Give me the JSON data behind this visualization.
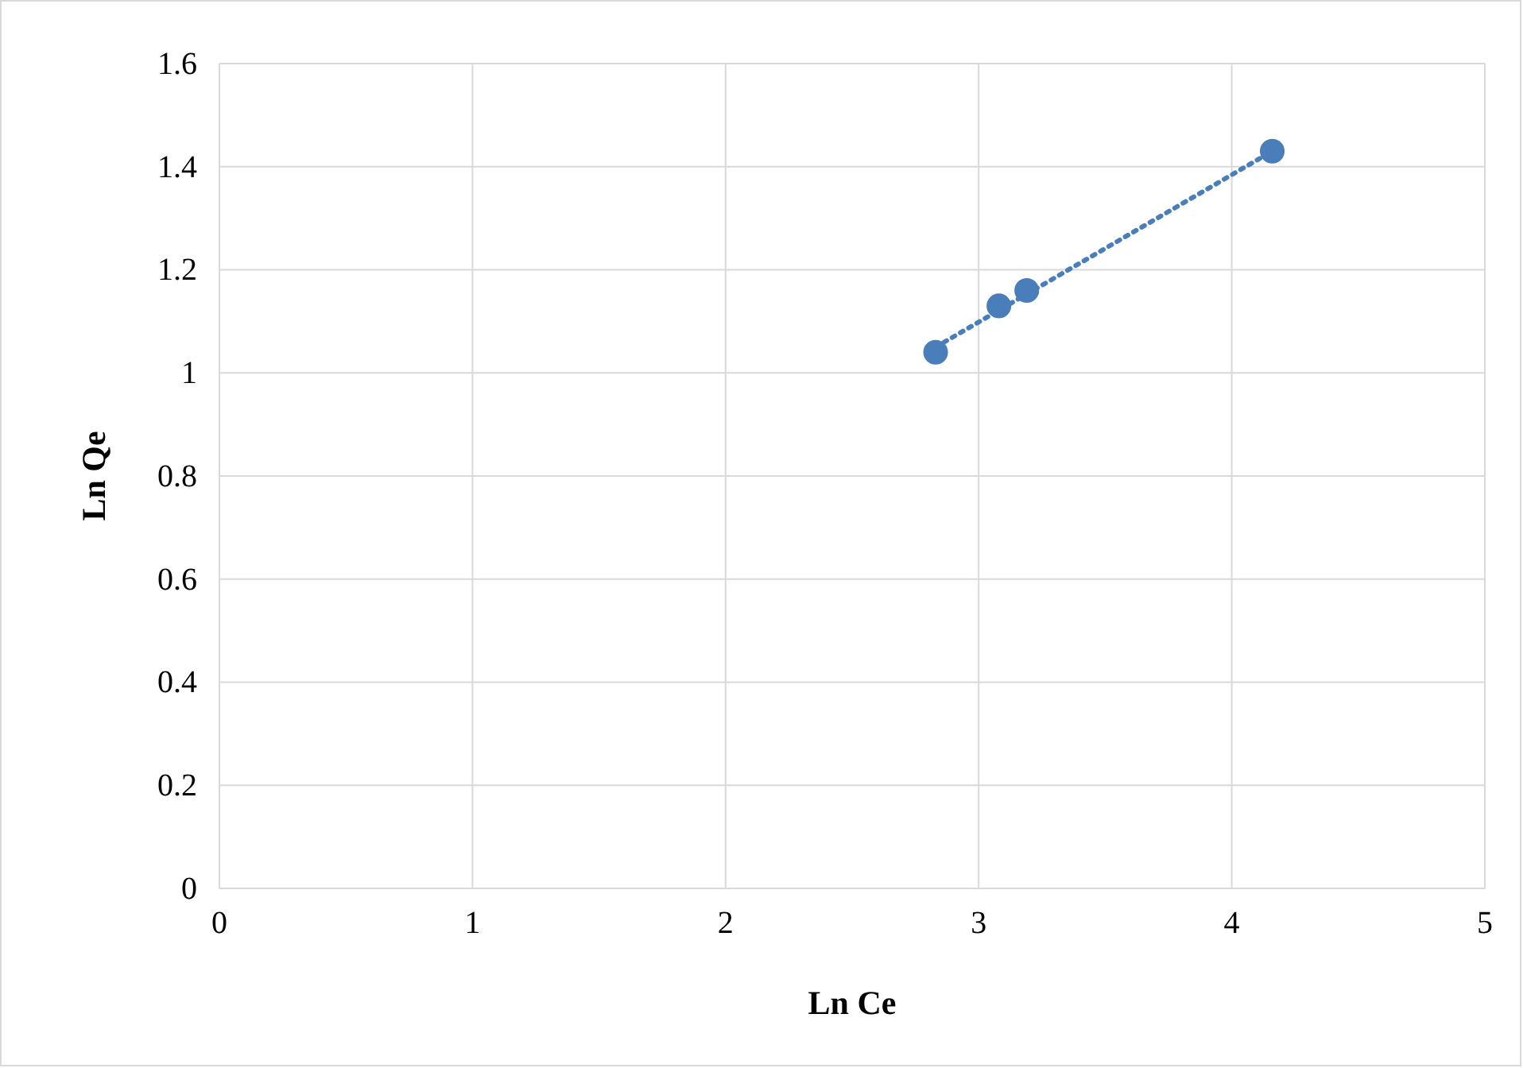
{
  "chart_data": {
    "type": "scatter",
    "xlabel": "Ln Ce",
    "ylabel": "Ln Qe",
    "xlim": [
      0,
      5
    ],
    "xticks": [
      0,
      1,
      2,
      3,
      4,
      5
    ],
    "ylim": [
      0,
      1.6
    ],
    "yticks": [
      0,
      {
        "value": 0.2,
        "label": "0.2"
      },
      {
        "value": 0.4,
        "label": "0.4"
      },
      {
        "value": 0.6,
        "label": "0.6"
      },
      {
        "value": 0.8,
        "label": "0.8"
      },
      1,
      {
        "value": 1.2,
        "label": "1.2"
      },
      {
        "value": 1.4,
        "label": "1.4"
      },
      {
        "value": 1.6,
        "label": "1.6"
      }
    ],
    "grid": true,
    "series": [
      {
        "color": "#4a7ebb",
        "marker": "circle",
        "x": [
          2.83,
          3.08,
          3.19,
          4.16
        ],
        "values": [
          1.04,
          1.13,
          1.16,
          1.43
        ]
      },
      {
        "type": "line",
        "color": "#4a7ebb",
        "line_style": "dotted",
        "marker": "none",
        "x": [
          2.83,
          4.16
        ],
        "values": [
          1.05,
          1.43
        ]
      }
    ]
  }
}
